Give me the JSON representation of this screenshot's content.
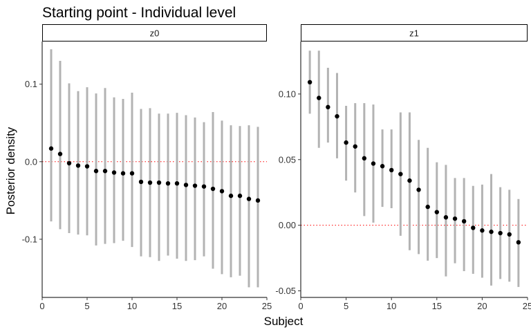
{
  "chart_data": {
    "type": "scatter",
    "title": "Starting point - Individual level",
    "xlabel": "Subject",
    "ylabel": "Posterior density",
    "colors": {
      "point": "#000000",
      "interval": "#b3b3b3",
      "reference": "#ff0000"
    },
    "panels": [
      {
        "name": "z0",
        "xlim": [
          0,
          25
        ],
        "ylim": [
          -0.175,
          0.155
        ],
        "x_ticks": [
          0,
          5,
          10,
          15,
          20,
          25
        ],
        "y_ticks": [
          -0.1,
          0.0,
          0.1
        ],
        "y_tick_labels": [
          "-0.1",
          "0.0",
          "0.1"
        ],
        "reference_y": 0,
        "x": [
          1,
          2,
          3,
          4,
          5,
          6,
          7,
          8,
          9,
          10,
          11,
          12,
          13,
          14,
          15,
          16,
          17,
          18,
          19,
          20,
          21,
          22,
          23,
          24
        ],
        "y": [
          0.017,
          0.01,
          -0.002,
          -0.005,
          -0.006,
          -0.012,
          -0.012,
          -0.014,
          -0.015,
          -0.015,
          -0.026,
          -0.027,
          -0.027,
          -0.028,
          -0.028,
          -0.03,
          -0.031,
          -0.032,
          -0.035,
          -0.038,
          -0.044,
          -0.044,
          -0.048,
          -0.05
        ],
        "lower": [
          -0.077,
          -0.087,
          -0.092,
          -0.094,
          -0.095,
          -0.108,
          -0.106,
          -0.105,
          -0.102,
          -0.11,
          -0.122,
          -0.123,
          -0.128,
          -0.121,
          -0.125,
          -0.128,
          -0.127,
          -0.122,
          -0.138,
          -0.145,
          -0.149,
          -0.147,
          -0.162,
          -0.162
        ],
        "upper": [
          0.145,
          0.13,
          0.101,
          0.091,
          0.096,
          0.088,
          0.095,
          0.083,
          0.081,
          0.089,
          0.068,
          0.069,
          0.062,
          0.062,
          0.063,
          0.06,
          0.057,
          0.051,
          0.064,
          0.053,
          0.047,
          0.046,
          0.047,
          0.045
        ]
      },
      {
        "name": "z1",
        "xlim": [
          0,
          25
        ],
        "ylim": [
          -0.055,
          0.14
        ],
        "x_ticks": [
          0,
          5,
          10,
          15,
          20,
          25
        ],
        "y_ticks": [
          -0.05,
          0.0,
          0.05,
          0.1
        ],
        "y_tick_labels": [
          "-0.05",
          "0.00",
          "0.05",
          "0.10"
        ],
        "reference_y": 0,
        "x": [
          1,
          2,
          3,
          4,
          5,
          6,
          7,
          8,
          9,
          10,
          11,
          12,
          13,
          14,
          15,
          16,
          17,
          18,
          19,
          20,
          21,
          22,
          23,
          24
        ],
        "y": [
          0.109,
          0.097,
          0.09,
          0.083,
          0.063,
          0.06,
          0.051,
          0.047,
          0.045,
          0.042,
          0.039,
          0.034,
          0.027,
          0.014,
          0.01,
          0.006,
          0.005,
          0.003,
          -0.002,
          -0.004,
          -0.005,
          -0.006,
          -0.007,
          -0.013
        ],
        "lower": [
          0.085,
          0.059,
          0.063,
          0.051,
          0.034,
          0.025,
          0.007,
          0.002,
          0.014,
          0.013,
          -0.008,
          -0.019,
          -0.022,
          -0.027,
          -0.025,
          -0.039,
          -0.029,
          -0.035,
          -0.037,
          -0.04,
          -0.046,
          -0.041,
          -0.043,
          -0.047
        ],
        "upper": [
          0.133,
          0.133,
          0.12,
          0.116,
          0.091,
          0.093,
          0.093,
          0.092,
          0.073,
          0.073,
          0.086,
          0.086,
          0.065,
          0.059,
          0.048,
          0.046,
          0.036,
          0.036,
          0.03,
          0.031,
          0.039,
          0.029,
          0.027,
          0.02
        ]
      }
    ]
  }
}
